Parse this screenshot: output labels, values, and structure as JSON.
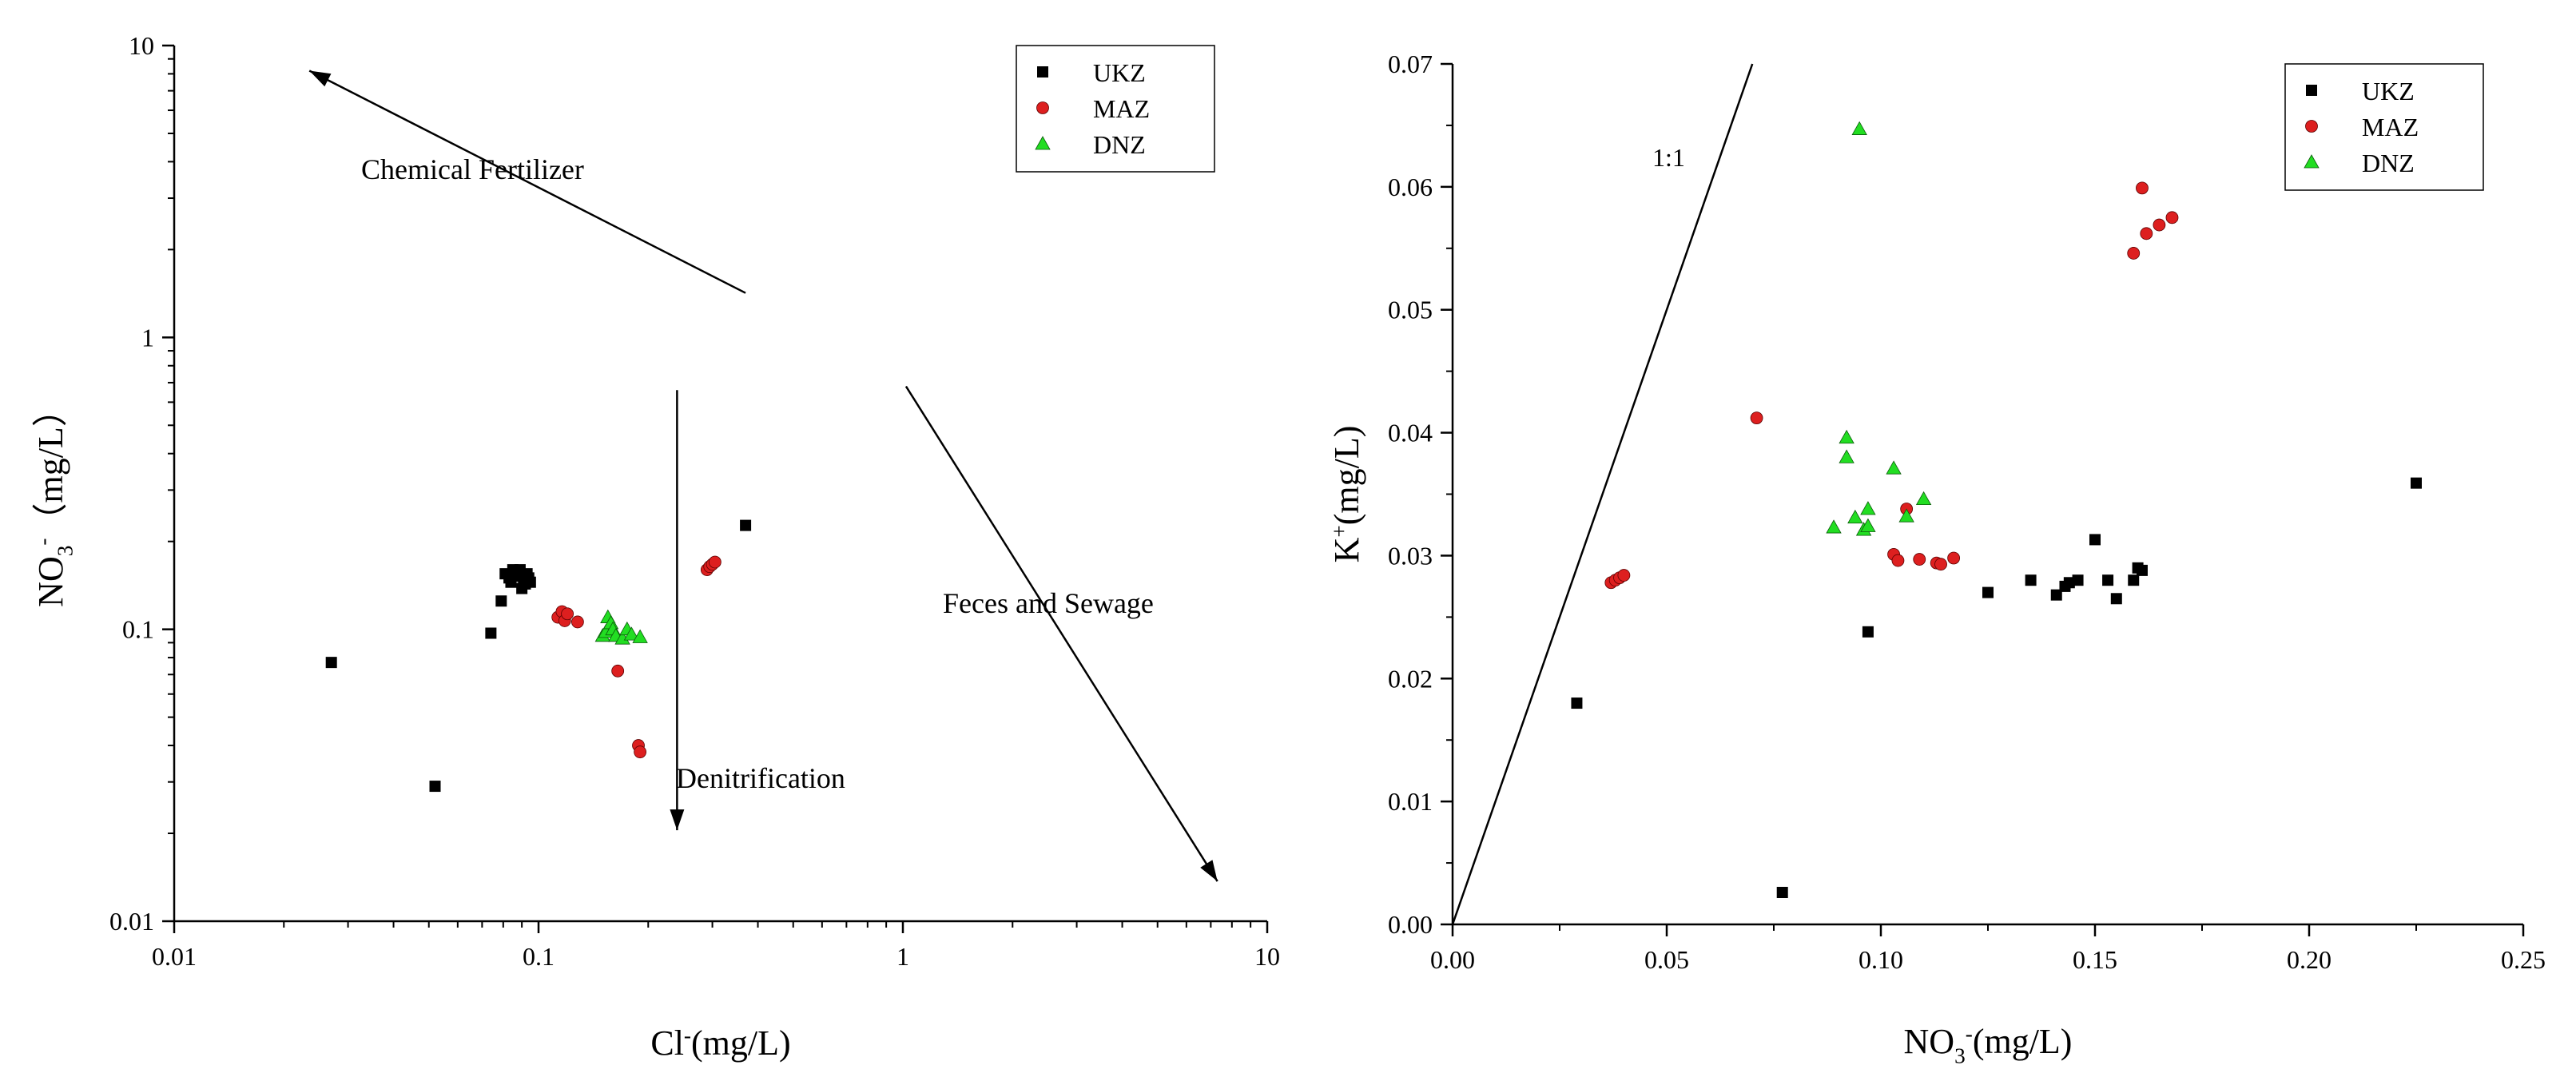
{
  "chart_data": [
    {
      "type": "scatter",
      "title": "",
      "xlabel": "Cl⁻(mg/L)",
      "ylabel": "NO₃⁻（mg/L）",
      "xscale": "log",
      "yscale": "log",
      "xlim": [
        0.01,
        10
      ],
      "ylim": [
        0.01,
        10
      ],
      "x_ticks": [
        0.01,
        0.1,
        1,
        10
      ],
      "x_tick_labels": [
        "0.01",
        "0.1",
        "1",
        "10"
      ],
      "y_ticks": [
        0.01,
        0.1,
        1,
        10
      ],
      "y_tick_labels": [
        "0.01",
        "0.1",
        "1",
        "10"
      ],
      "grid": false,
      "legend_position": "top-right",
      "series": [
        {
          "name": "UKZ",
          "marker": "square",
          "color": "#000000",
          "x": [
            0.027,
            0.052,
            0.074,
            0.079,
            0.081,
            0.083,
            0.084,
            0.085,
            0.086,
            0.087,
            0.088,
            0.089,
            0.09,
            0.091,
            0.092,
            0.093,
            0.094,
            0.095,
            0.37
          ],
          "y": [
            0.077,
            0.029,
            0.097,
            0.125,
            0.155,
            0.15,
            0.145,
            0.16,
            0.158,
            0.155,
            0.152,
            0.16,
            0.138,
            0.148,
            0.143,
            0.155,
            0.15,
            0.145,
            0.227
          ]
        },
        {
          "name": "MAZ",
          "marker": "circle",
          "color": "#dd1f1f",
          "x": [
            0.113,
            0.116,
            0.118,
            0.12,
            0.128,
            0.165,
            0.188,
            0.19,
            0.29,
            0.295,
            0.3,
            0.305
          ],
          "y": [
            0.11,
            0.115,
            0.107,
            0.113,
            0.106,
            0.072,
            0.04,
            0.038,
            0.16,
            0.164,
            0.167,
            0.17
          ]
        },
        {
          "name": "DNZ",
          "marker": "triangle",
          "color": "#22dd22",
          "x": [
            0.15,
            0.153,
            0.155,
            0.158,
            0.16,
            0.163,
            0.17,
            0.175,
            0.18,
            0.19
          ],
          "y": [
            0.095,
            0.098,
            0.11,
            0.105,
            0.1,
            0.095,
            0.093,
            0.1,
            0.096,
            0.094
          ]
        }
      ],
      "annotations": [
        {
          "text": "Chemical Fertilizer",
          "arrow_from": [
            0.37,
            1.42
          ],
          "arrow_to": [
            0.0235,
            8.2
          ]
        },
        {
          "text": "Denitrification",
          "arrow_from": [
            0.24,
            0.66
          ],
          "arrow_to": [
            0.24,
            0.0205
          ]
        },
        {
          "text": "Feces and Sewage",
          "arrow_from": [
            1.02,
            0.68
          ],
          "arrow_to": [
            7.3,
            0.0137
          ]
        }
      ]
    },
    {
      "type": "scatter",
      "title": "",
      "xlabel": "NO₃⁻(mg/L)",
      "ylabel": "K⁺(mg/L)",
      "xlim": [
        0,
        0.25
      ],
      "ylim": [
        0,
        0.07
      ],
      "x_ticks": [
        0,
        0.05,
        0.1,
        0.15,
        0.2,
        0.25
      ],
      "x_tick_labels": [
        "0.00",
        "0.05",
        "0.10",
        "0.15",
        "0.20",
        "0.25"
      ],
      "y_ticks": [
        0,
        0.01,
        0.02,
        0.03,
        0.04,
        0.05,
        0.06,
        0.07
      ],
      "y_tick_labels": [
        "0.00",
        "0.01",
        "0.02",
        "0.03",
        "0.04",
        "0.05",
        "0.06",
        "0.07"
      ],
      "grid": false,
      "legend_position": "top-right",
      "series": [
        {
          "name": "UKZ",
          "marker": "square",
          "color": "#000000",
          "x": [
            0.029,
            0.077,
            0.097,
            0.125,
            0.135,
            0.141,
            0.143,
            0.144,
            0.146,
            0.15,
            0.153,
            0.155,
            0.159,
            0.16,
            0.161,
            0.225
          ],
          "y": [
            0.018,
            0.0026,
            0.0238,
            0.027,
            0.028,
            0.0268,
            0.0275,
            0.0278,
            0.028,
            0.0313,
            0.028,
            0.0265,
            0.028,
            0.029,
            0.0288,
            0.0359
          ]
        },
        {
          "name": "MAZ",
          "marker": "circle",
          "color": "#dd1f1f",
          "x": [
            0.037,
            0.038,
            0.039,
            0.04,
            0.071,
            0.103,
            0.104,
            0.106,
            0.109,
            0.113,
            0.114,
            0.117,
            0.159,
            0.161,
            0.162,
            0.165,
            0.168
          ],
          "y": [
            0.0278,
            0.028,
            0.0282,
            0.0284,
            0.0412,
            0.0301,
            0.0296,
            0.0338,
            0.0297,
            0.0294,
            0.0293,
            0.0298,
            0.0546,
            0.0599,
            0.0562,
            0.0569,
            0.0575
          ]
        },
        {
          "name": "DNZ",
          "marker": "triangle",
          "color": "#22dd22",
          "x": [
            0.089,
            0.092,
            0.092,
            0.094,
            0.095,
            0.096,
            0.097,
            0.097,
            0.103,
            0.106,
            0.11
          ],
          "y": [
            0.0323,
            0.0396,
            0.038,
            0.0331,
            0.0647,
            0.0321,
            0.0338,
            0.0324,
            0.0371,
            0.0332,
            0.0346
          ]
        }
      ],
      "reference_line": {
        "label": "1:1",
        "from": [
          0,
          0
        ],
        "to": [
          0.07,
          0.07
        ]
      }
    }
  ]
}
